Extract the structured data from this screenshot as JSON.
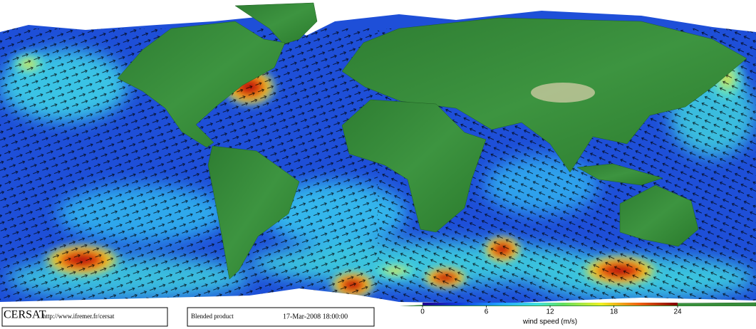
{
  "footer": {
    "logo": "CERSAT",
    "url": "http://www.ifremer.fr/cersat",
    "product": "Blended product",
    "timestamp": "17-Mar-2008 18:00:00"
  },
  "colorbar": {
    "label": "wind speed (m/s)",
    "lim": [
      0,
      24
    ],
    "ticks": [
      0,
      6,
      12,
      18,
      24
    ]
  }
}
